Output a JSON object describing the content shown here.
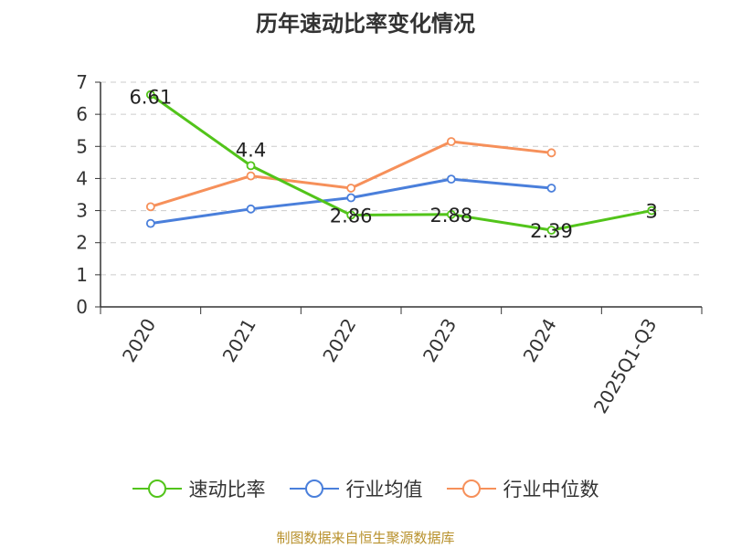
{
  "chart_data": {
    "type": "line",
    "title": "历年速动比率变化情况",
    "categories": [
      "2020",
      "2021",
      "2022",
      "2023",
      "2024",
      "2025Q1-Q3"
    ],
    "ylim": [
      0,
      7
    ],
    "yticks": [
      "0",
      "1",
      "2",
      "3",
      "4",
      "5",
      "6",
      "7"
    ],
    "grid": true,
    "legend_position": "bottom",
    "series": [
      {
        "name": "速动比率",
        "color": "#52c41a",
        "values": [
          6.61,
          4.4,
          2.86,
          2.88,
          2.39,
          3
        ],
        "labels": [
          "6.61",
          "4.4",
          "2.86",
          "2.88",
          "2.39",
          "3"
        ]
      },
      {
        "name": "行业均值",
        "color": "#4a7fdb",
        "values": [
          2.6,
          3.05,
          3.4,
          3.98,
          3.7,
          null
        ]
      },
      {
        "name": "行业中位数",
        "color": "#f6905a",
        "values": [
          3.12,
          4.08,
          3.7,
          5.15,
          4.8,
          null
        ]
      }
    ]
  },
  "footer": {
    "source": "制图数据来自恒生聚源数据库"
  }
}
